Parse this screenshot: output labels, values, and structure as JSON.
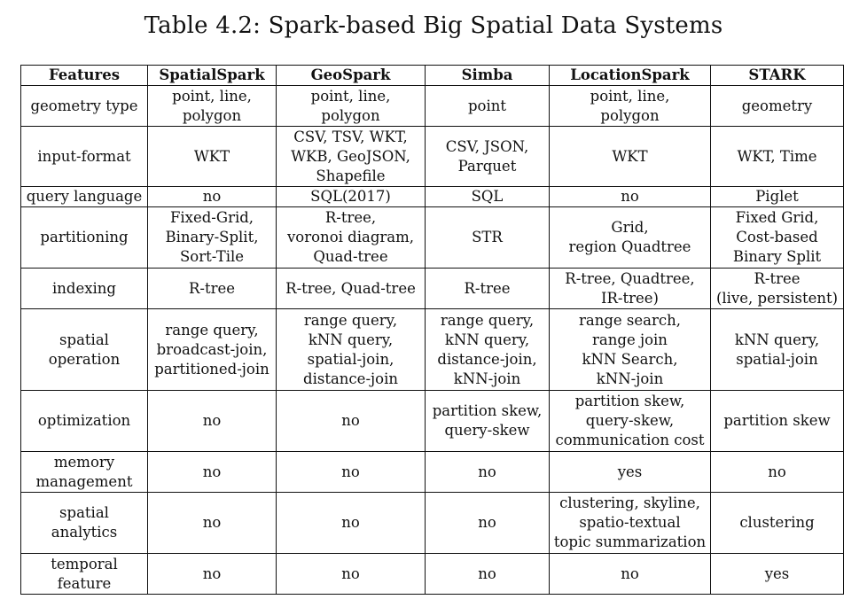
{
  "caption": "Table 4.2: Spark-based Big Spatial Data Systems",
  "columns": [
    "Features",
    "SpatialSpark",
    "GeoSpark",
    "Simba",
    "LocationSpark",
    "STARK"
  ],
  "rows": [
    {
      "feature": "geometry type",
      "cells": [
        "point, line,\npolygon",
        "point, line,\npolygon",
        "point",
        "point, line,\npolygon",
        "geometry"
      ]
    },
    {
      "feature": "input-format",
      "cells": [
        "WKT",
        "CSV, TSV, WKT,\nWKB, GeoJSON,\nShapefile",
        "CSV, JSON,\nParquet",
        "WKT",
        "WKT, Time"
      ]
    },
    {
      "feature": "query language",
      "cells": [
        "no",
        "SQL(2017)",
        "SQL",
        "no",
        "Piglet"
      ]
    },
    {
      "feature": "partitioning",
      "cells": [
        "Fixed-Grid,\nBinary-Split,\nSort-Tile",
        "R-tree,\nvoronoi diagram,\nQuad-tree",
        "STR",
        "Grid,\nregion Quadtree",
        "Fixed Grid,\nCost-based\nBinary Split"
      ]
    },
    {
      "feature": "indexing",
      "cells": [
        "R-tree",
        "R-tree, Quad-tree",
        "R-tree",
        "R-tree, Quadtree,\nIR-tree)",
        "R-tree\n(live, persistent)"
      ]
    },
    {
      "feature": "spatial\noperation",
      "cells": [
        "range query,\nbroadcast-join,\npartitioned-join",
        "range query,\nkNN query,\nspatial-join,\ndistance-join",
        "range query,\nkNN query,\ndistance-join,\nkNN-join",
        "range search,\nrange join\nkNN Search,\nkNN-join",
        "kNN query,\nspatial-join"
      ]
    },
    {
      "feature": "optimization",
      "cells": [
        "no",
        "no",
        "partition skew,\nquery-skew",
        "partition skew,\nquery-skew,\ncommunication cost",
        "partition skew"
      ]
    },
    {
      "feature": "memory\nmanagement",
      "cells": [
        "no",
        "no",
        "no",
        "yes",
        "no"
      ]
    },
    {
      "feature": "spatial\nanalytics",
      "cells": [
        "no",
        "no",
        "no",
        "clustering, skyline,\nspatio-textual\ntopic summarization",
        "clustering"
      ]
    },
    {
      "feature": "temporal\nfeature",
      "cells": [
        "no",
        "no",
        "no",
        "no",
        "yes"
      ]
    }
  ]
}
